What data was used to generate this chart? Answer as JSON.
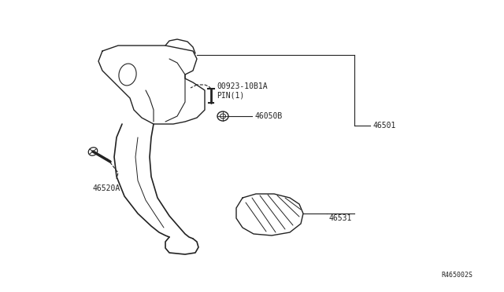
{
  "bg_color": "#ffffff",
  "line_color": "#222222",
  "text_color": "#222222",
  "fig_width": 6.4,
  "fig_height": 3.72,
  "dpi": 100,
  "labels": {
    "pin": "00923-10B1A\nPIN(1)",
    "part1": "46050B",
    "part2": "46501",
    "part3": "46520A",
    "part4": "46531",
    "ref": "R465002S"
  }
}
